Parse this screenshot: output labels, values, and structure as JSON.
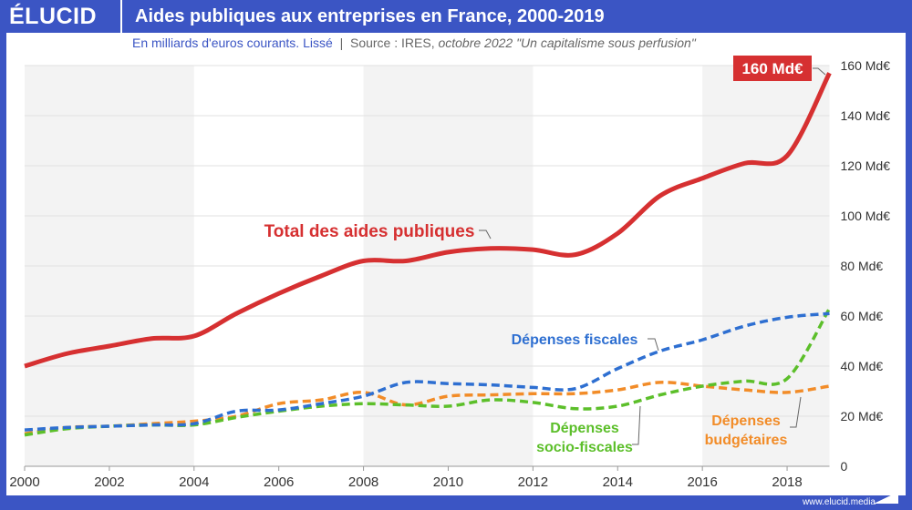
{
  "header": {
    "logo": "ÉLUCID",
    "title": "Aides publiques aux entreprises en France, 2000-2019"
  },
  "subtitle": {
    "unit": "En milliards d'euros courants. Lissé",
    "separator": "|",
    "source": "Source : IRES,",
    "source_detail": "octobre 2022 \"Un capitalisme sous perfusion\""
  },
  "footer": {
    "url": "www.elucid.media"
  },
  "chart_data": {
    "type": "line",
    "x": [
      2000,
      2001,
      2002,
      2003,
      2004,
      2005,
      2006,
      2007,
      2008,
      2009,
      2010,
      2011,
      2012,
      2013,
      2014,
      2015,
      2016,
      2017,
      2018,
      2019
    ],
    "xlim": [
      2000,
      2019
    ],
    "ylim": [
      0,
      160
    ],
    "x_ticks": [
      "2000",
      "2002",
      "2004",
      "2006",
      "2008",
      "2010",
      "2012",
      "2014",
      "2016",
      "2018"
    ],
    "y_ticks": [
      "0",
      "20 Md€",
      "40 Md€",
      "60 Md€",
      "80 Md€",
      "100 Md€",
      "120 Md€",
      "140 Md€",
      "160 Md€"
    ],
    "grid": true,
    "callout": "160 Md€",
    "series": [
      {
        "name": "Total des aides publiques",
        "color": "#d63031",
        "style": "solid",
        "values": [
          40,
          45,
          48,
          51,
          52,
          61,
          69,
          76,
          82,
          82,
          85.5,
          87,
          86.5,
          84.5,
          93,
          108,
          115,
          121,
          124,
          157
        ]
      },
      {
        "name": "Dépenses fiscales",
        "color": "#2e6fd1",
        "style": "dashed",
        "values": [
          14.5,
          15.5,
          16,
          16.5,
          17,
          22,
          22.5,
          25,
          28,
          33.5,
          33,
          32.5,
          31.5,
          31,
          39,
          46,
          50.5,
          56,
          59.5,
          61
        ]
      },
      {
        "name": "Dépenses socio-fiscales",
        "color": "#5cbf2a",
        "style": "dashed",
        "values": [
          12.5,
          15,
          16,
          16.5,
          16.5,
          19.5,
          22,
          24,
          25,
          24.5,
          24,
          26.5,
          25.5,
          23,
          24,
          28.5,
          32,
          34,
          35,
          63
        ]
      },
      {
        "name": "Dépenses budgétaires",
        "color": "#f28c28",
        "style": "dashed",
        "values": [
          13,
          15.5,
          16,
          17,
          18,
          20,
          25,
          26.5,
          29.5,
          24.5,
          28,
          28.5,
          29,
          29,
          30.5,
          33.5,
          32,
          30.5,
          29.5,
          32
        ]
      }
    ]
  }
}
